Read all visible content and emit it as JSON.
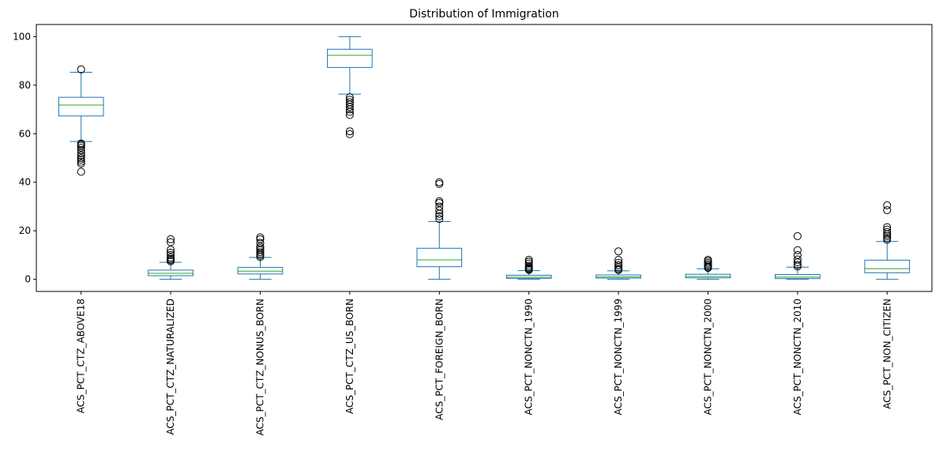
{
  "chart_data": {
    "type": "box",
    "title": "Distribution of Immigration",
    "xlabel": "",
    "ylabel": "",
    "ylim": [
      -5,
      105
    ],
    "yticks": [
      0,
      20,
      40,
      60,
      80,
      100
    ],
    "grid": false,
    "colors": {
      "box": "#1f77b4",
      "median": "#2ca02c",
      "flier": "#000000"
    },
    "categories": [
      "ACS_PCT_CTZ_ABOVE18",
      "ACS_PCT_CTZ_NATURALIZED",
      "ACS_PCT_CTZ_NONUS_BORN",
      "ACS_PCT_CTZ_US_BORN",
      "ACS_PCT_FOREIGN_BORN",
      "ACS_PCT_NONCTN_1990",
      "ACS_PCT_NONCTN_1999",
      "ACS_PCT_NONCTN_2000",
      "ACS_PCT_NONCTN_2010",
      "ACS_PCT_NON_CITIZEN"
    ],
    "boxes": [
      {
        "whisker_low": 56.8,
        "q1": 67.3,
        "median": 71.8,
        "q3": 75.0,
        "whisker_high": 85.3,
        "fliers": [
          44.3,
          47.7,
          48.5,
          49.3,
          50.0,
          51.0,
          52.0,
          53.2,
          54.2,
          55.0,
          55.6,
          56.0,
          86.5
        ]
      },
      {
        "whisker_low": 0.0,
        "q1": 1.5,
        "median": 2.5,
        "q3": 3.8,
        "whisker_high": 7.0,
        "fliers": [
          7.4,
          7.9,
          8.4,
          9.0,
          10.0,
          11.0,
          12.2,
          15.3,
          16.5
        ]
      },
      {
        "whisker_low": 0.0,
        "q1": 2.2,
        "median": 3.4,
        "q3": 4.9,
        "whisker_high": 9.0,
        "fliers": [
          9.2,
          9.8,
          10.5,
          11.2,
          12.0,
          12.8,
          13.5,
          15.0,
          16.5,
          17.3
        ]
      },
      {
        "whisker_low": 76.3,
        "q1": 87.3,
        "median": 92.3,
        "q3": 94.8,
        "whisker_high": 100.0,
        "fliers": [
          59.8,
          61.0,
          67.7,
          69.0,
          70.0,
          71.0,
          72.0,
          73.0,
          74.0,
          75.0
        ]
      },
      {
        "whisker_low": 0.0,
        "q1": 5.2,
        "median": 8.0,
        "q3": 12.8,
        "whisker_high": 23.8,
        "fliers": [
          24.9,
          26.0,
          27.0,
          28.4,
          30.0,
          31.5,
          32.2,
          39.3,
          40.0
        ]
      },
      {
        "whisker_low": 0.0,
        "q1": 0.4,
        "median": 0.9,
        "q3": 1.7,
        "whisker_high": 3.6,
        "fliers": [
          3.9,
          4.2,
          4.6,
          5.0,
          5.6,
          6.5,
          7.3,
          8.0
        ]
      },
      {
        "whisker_low": 0.0,
        "q1": 0.5,
        "median": 1.0,
        "q3": 1.8,
        "whisker_high": 3.5,
        "fliers": [
          3.8,
          4.3,
          5.0,
          5.8,
          6.8,
          8.0,
          11.5
        ]
      },
      {
        "whisker_low": 0.0,
        "q1": 0.6,
        "median": 1.2,
        "q3": 2.1,
        "whisker_high": 4.3,
        "fliers": [
          4.7,
          5.1,
          5.6,
          6.2,
          6.8,
          7.5,
          8.0
        ]
      },
      {
        "whisker_low": 0.0,
        "q1": 0.3,
        "median": 0.9,
        "q3": 2.0,
        "whisker_high": 5.0,
        "fliers": [
          5.3,
          6.0,
          7.0,
          8.2,
          10.0,
          12.0,
          17.8
        ]
      },
      {
        "whisker_low": 0.0,
        "q1": 2.7,
        "median": 4.4,
        "q3": 7.9,
        "whisker_high": 15.6,
        "fliers": [
          16.3,
          17.0,
          17.8,
          18.5,
          19.5,
          20.5,
          21.5,
          28.5,
          30.5
        ]
      }
    ]
  }
}
